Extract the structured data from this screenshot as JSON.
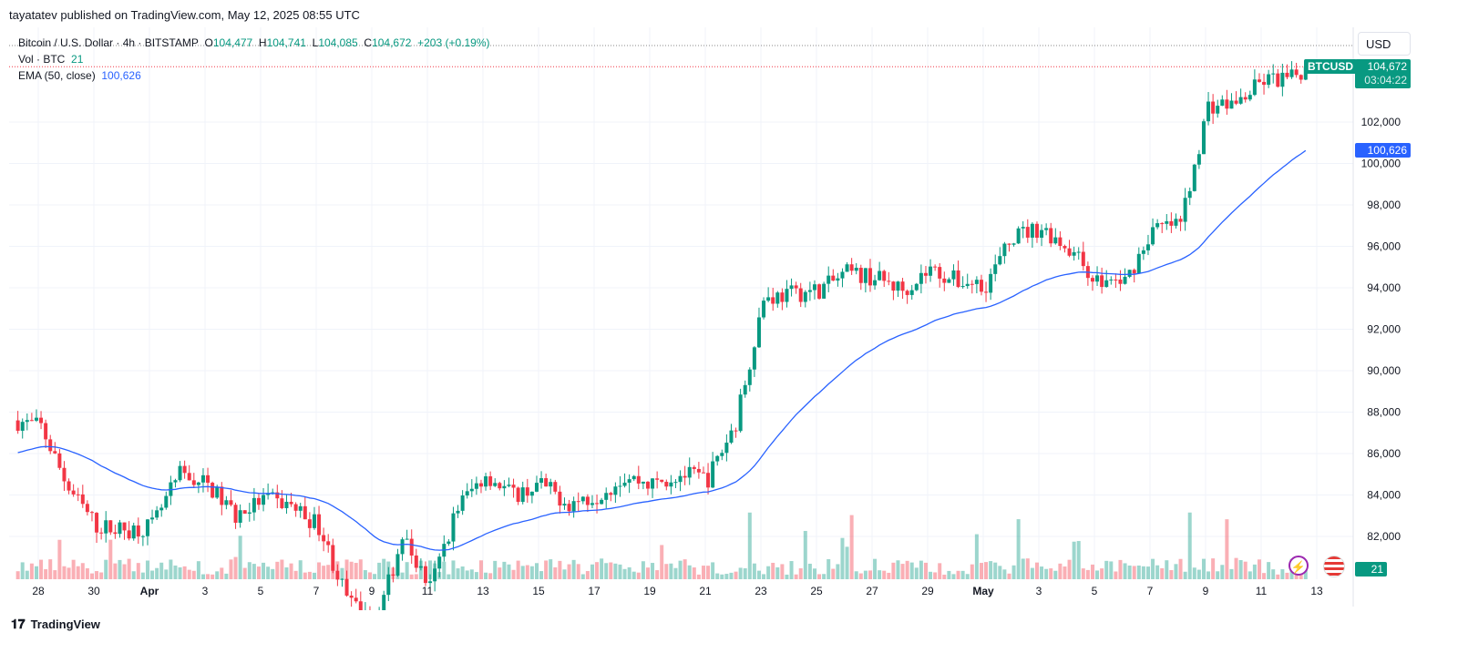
{
  "publisher": "tayatatev published on TradingView.com, May 12, 2025 08:55 UTC",
  "legend": {
    "symbol": "Bitcoin / U.S. Dollar · 4h · BITSTAMP",
    "o_label": "O",
    "o": "104,477",
    "h_label": "H",
    "h": "104,741",
    "l_label": "L",
    "l": "104,085",
    "c_label": "C",
    "c": "104,672",
    "change": "+203 (+0.19%)",
    "vol_label": "Vol · BTC",
    "vol": "21",
    "ema_label": "EMA (50, close)",
    "ema": "100,626"
  },
  "axis": {
    "currency": "USD",
    "symbol_tag": "BTCUSD",
    "last_price": "104,672",
    "countdown": "03:04:22",
    "ema_tag": "100,626",
    "volume_tag": "21"
  },
  "footer": {
    "brand": "TradingView"
  },
  "colors": {
    "up": "#089981",
    "down": "#f23645",
    "ema": "#2962ff"
  },
  "chart_data": {
    "type": "candlestick",
    "interval": "4h",
    "ylim": [
      80000,
      105500
    ],
    "y_ticks": [
      "82,000",
      "84,000",
      "86,000",
      "88,000",
      "90,000",
      "92,000",
      "94,000",
      "96,000",
      "98,000",
      "100,000",
      "102,000"
    ],
    "x_ticks": [
      "28",
      "30",
      "Apr",
      "3",
      "5",
      "7",
      "9",
      "11",
      "13",
      "15",
      "17",
      "19",
      "21",
      "23",
      "25",
      "27",
      "29",
      "May",
      "3",
      "5",
      "7",
      "9",
      "11",
      "13"
    ],
    "daily_close_approx": {
      "dates": [
        "Mar 27",
        "Mar 28",
        "Mar 29",
        "Mar 30",
        "Mar 31",
        "Apr 1",
        "Apr 2",
        "Apr 3",
        "Apr 4",
        "Apr 5",
        "Apr 6",
        "Apr 7",
        "Apr 8",
        "Apr 9",
        "Apr 10",
        "Apr 11",
        "Apr 12",
        "Apr 13",
        "Apr 14",
        "Apr 15",
        "Apr 16",
        "Apr 17",
        "Apr 18",
        "Apr 19",
        "Apr 20",
        "Apr 21",
        "Apr 22",
        "Apr 23",
        "Apr 24",
        "Apr 25",
        "Apr 26",
        "Apr 27",
        "Apr 28",
        "Apr 29",
        "Apr 30",
        "May 1",
        "May 2",
        "May 3",
        "May 4",
        "May 5",
        "May 6",
        "May 7",
        "May 8",
        "May 9",
        "May 10",
        "May 11",
        "May 12"
      ],
      "values": [
        87300,
        84300,
        82500,
        82300,
        82500,
        85000,
        84500,
        83000,
        83800,
        83500,
        82500,
        79000,
        77500,
        82000,
        79500,
        83500,
        85000,
        84000,
        84500,
        83600,
        84000,
        84900,
        84500,
        85000,
        84800,
        87500,
        93500,
        93700,
        93900,
        94700,
        94500,
        93900,
        94900,
        94300,
        94200,
        96500,
        96900,
        95900,
        94300,
        94300,
        96800,
        97100,
        102800,
        102900,
        104000,
        104100,
        104672
      ]
    },
    "ema_period": 50,
    "ema_last": 100626
  }
}
